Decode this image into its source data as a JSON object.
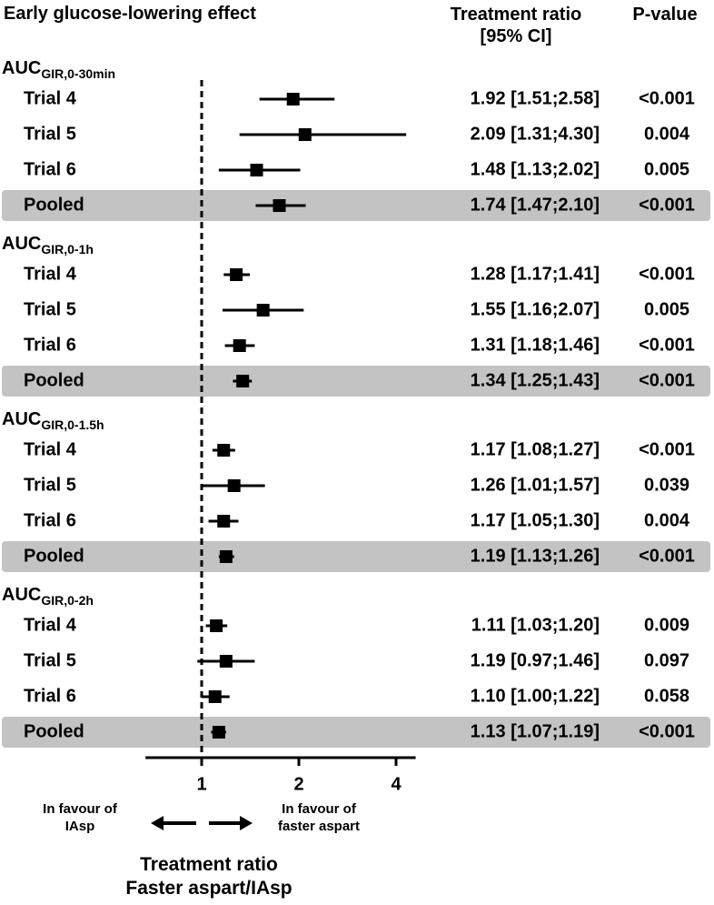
{
  "header": {
    "title": "Early glucose-lowering effect",
    "ratio_col_line1": "Treatment ratio",
    "ratio_col_line2": "[95% CI]",
    "pvalue_col": "P-value"
  },
  "chart_data": {
    "type": "forest",
    "x_scale": "log2",
    "xlim": [
      0.67,
      4.6
    ],
    "reference_line": 1,
    "x_ticks": [
      "1",
      "2",
      "4"
    ],
    "x_tick_values": [
      1,
      2,
      4
    ],
    "xlabel_line1": "Treatment ratio",
    "xlabel_line2": "Faster aspart/IAsp",
    "favour_left_line1": "In favour of",
    "favour_left_line2": "IAsp",
    "favour_right_line1": "In favour of",
    "favour_right_line2": "faster aspart",
    "groups": [
      {
        "label_main": "AUC",
        "label_sub": "GIR,0-30min",
        "rows": [
          {
            "label": "Trial 4",
            "ratio": 1.92,
            "lo": 1.51,
            "hi": 2.58,
            "text": "1.92 [1.51;2.58]",
            "p": "<0.001",
            "pooled": false
          },
          {
            "label": "Trial 5",
            "ratio": 2.09,
            "lo": 1.31,
            "hi": 4.3,
            "text": "2.09 [1.31;4.30]",
            "p": "0.004",
            "pooled": false
          },
          {
            "label": "Trial 6",
            "ratio": 1.48,
            "lo": 1.13,
            "hi": 2.02,
            "text": "1.48 [1.13;2.02]",
            "p": "0.005",
            "pooled": false
          },
          {
            "label": "Pooled",
            "ratio": 1.74,
            "lo": 1.47,
            "hi": 2.1,
            "text": "1.74 [1.47;2.10]",
            "p": "<0.001",
            "pooled": true
          }
        ]
      },
      {
        "label_main": "AUC",
        "label_sub": "GIR,0-1h",
        "rows": [
          {
            "label": "Trial 4",
            "ratio": 1.28,
            "lo": 1.17,
            "hi": 1.41,
            "text": "1.28 [1.17;1.41]",
            "p": "<0.001",
            "pooled": false
          },
          {
            "label": "Trial 5",
            "ratio": 1.55,
            "lo": 1.16,
            "hi": 2.07,
            "text": "1.55 [1.16;2.07]",
            "p": "0.005",
            "pooled": false
          },
          {
            "label": "Trial 6",
            "ratio": 1.31,
            "lo": 1.18,
            "hi": 1.46,
            "text": "1.31 [1.18;1.46]",
            "p": "<0.001",
            "pooled": false
          },
          {
            "label": "Pooled",
            "ratio": 1.34,
            "lo": 1.25,
            "hi": 1.43,
            "text": "1.34 [1.25;1.43]",
            "p": "<0.001",
            "pooled": true
          }
        ]
      },
      {
        "label_main": "AUC",
        "label_sub": "GIR,0-1.5h",
        "rows": [
          {
            "label": "Trial 4",
            "ratio": 1.17,
            "lo": 1.08,
            "hi": 1.27,
            "text": "1.17 [1.08;1.27]",
            "p": "<0.001",
            "pooled": false
          },
          {
            "label": "Trial 5",
            "ratio": 1.26,
            "lo": 1.01,
            "hi": 1.57,
            "text": "1.26 [1.01;1.57]",
            "p": "0.039",
            "pooled": false
          },
          {
            "label": "Trial 6",
            "ratio": 1.17,
            "lo": 1.05,
            "hi": 1.3,
            "text": "1.17 [1.05;1.30]",
            "p": "0.004",
            "pooled": false
          },
          {
            "label": "Pooled",
            "ratio": 1.19,
            "lo": 1.13,
            "hi": 1.26,
            "text": "1.19 [1.13;1.26]",
            "p": "<0.001",
            "pooled": true
          }
        ]
      },
      {
        "label_main": "AUC",
        "label_sub": "GIR,0-2h",
        "rows": [
          {
            "label": "Trial 4",
            "ratio": 1.11,
            "lo": 1.03,
            "hi": 1.2,
            "text": "1.11 [1.03;1.20]",
            "p": "0.009",
            "pooled": false
          },
          {
            "label": "Trial 5",
            "ratio": 1.19,
            "lo": 0.97,
            "hi": 1.46,
            "text": "1.19 [0.97;1.46]",
            "p": "0.097",
            "pooled": false
          },
          {
            "label": "Trial 6",
            "ratio": 1.1,
            "lo": 1.0,
            "hi": 1.22,
            "text": "1.10 [1.00;1.22]",
            "p": "0.058",
            "pooled": false
          },
          {
            "label": "Pooled",
            "ratio": 1.13,
            "lo": 1.07,
            "hi": 1.19,
            "text": "1.13 [1.07;1.19]",
            "p": "<0.001",
            "pooled": true
          }
        ]
      }
    ]
  },
  "colors": {
    "pooled_band": "#c3c3c3",
    "ink": "#000000"
  }
}
